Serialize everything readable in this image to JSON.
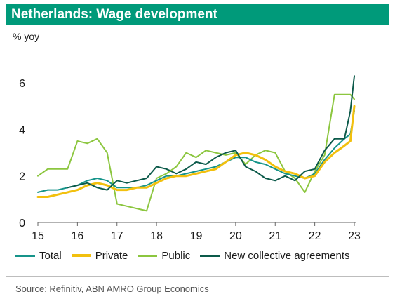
{
  "header": {
    "title": "Netherlands: Wage development"
  },
  "chart_data": {
    "type": "line",
    "title": "Netherlands: Wage development",
    "ylabel": "% yoy",
    "xlabel": "",
    "x_ticks": [
      "15",
      "16",
      "17",
      "18",
      "19",
      "20",
      "21",
      "22",
      "23"
    ],
    "y_ticks": [
      0,
      2,
      4,
      6
    ],
    "xlim": [
      2015,
      2023
    ],
    "ylim": [
      0,
      7
    ],
    "grid": false,
    "legend_position": "bottom",
    "series": [
      {
        "name": "Total",
        "color": "#16948a",
        "points": [
          [
            2015.0,
            1.3
          ],
          [
            2015.25,
            1.4
          ],
          [
            2015.5,
            1.4
          ],
          [
            2015.75,
            1.5
          ],
          [
            2016.0,
            1.6
          ],
          [
            2016.25,
            1.8
          ],
          [
            2016.5,
            1.9
          ],
          [
            2016.75,
            1.8
          ],
          [
            2017.0,
            1.5
          ],
          [
            2017.25,
            1.5
          ],
          [
            2017.5,
            1.5
          ],
          [
            2017.75,
            1.6
          ],
          [
            2018.0,
            1.8
          ],
          [
            2018.25,
            2.0
          ],
          [
            2018.5,
            2.0
          ],
          [
            2018.75,
            2.1
          ],
          [
            2019.0,
            2.2
          ],
          [
            2019.25,
            2.3
          ],
          [
            2019.5,
            2.4
          ],
          [
            2019.75,
            2.6
          ],
          [
            2020.0,
            2.8
          ],
          [
            2020.25,
            2.8
          ],
          [
            2020.5,
            2.6
          ],
          [
            2020.75,
            2.5
          ],
          [
            2021.0,
            2.3
          ],
          [
            2021.25,
            2.1
          ],
          [
            2021.5,
            2.0
          ],
          [
            2021.75,
            1.9
          ],
          [
            2022.0,
            2.1
          ],
          [
            2022.25,
            2.7
          ],
          [
            2022.5,
            3.2
          ],
          [
            2022.75,
            3.6
          ],
          [
            2022.9,
            3.8
          ],
          [
            2023.0,
            4.8
          ]
        ]
      },
      {
        "name": "Private",
        "color": "#f2c00e",
        "points": [
          [
            2015.0,
            1.1
          ],
          [
            2015.25,
            1.1
          ],
          [
            2015.5,
            1.2
          ],
          [
            2015.75,
            1.3
          ],
          [
            2016.0,
            1.4
          ],
          [
            2016.25,
            1.6
          ],
          [
            2016.5,
            1.7
          ],
          [
            2016.75,
            1.6
          ],
          [
            2017.0,
            1.4
          ],
          [
            2017.25,
            1.4
          ],
          [
            2017.5,
            1.5
          ],
          [
            2017.75,
            1.5
          ],
          [
            2018.0,
            1.7
          ],
          [
            2018.25,
            1.9
          ],
          [
            2018.5,
            2.0
          ],
          [
            2018.75,
            2.0
          ],
          [
            2019.0,
            2.1
          ],
          [
            2019.25,
            2.2
          ],
          [
            2019.5,
            2.3
          ],
          [
            2019.75,
            2.6
          ],
          [
            2020.0,
            2.9
          ],
          [
            2020.25,
            3.0
          ],
          [
            2020.5,
            2.9
          ],
          [
            2020.75,
            2.7
          ],
          [
            2021.0,
            2.4
          ],
          [
            2021.25,
            2.2
          ],
          [
            2021.5,
            2.1
          ],
          [
            2021.75,
            1.9
          ],
          [
            2022.0,
            2.0
          ],
          [
            2022.25,
            2.6
          ],
          [
            2022.5,
            3.0
          ],
          [
            2022.75,
            3.3
          ],
          [
            2022.9,
            3.5
          ],
          [
            2023.0,
            5.0
          ]
        ]
      },
      {
        "name": "Public",
        "color": "#8cc63f",
        "points": [
          [
            2015.0,
            2.0
          ],
          [
            2015.25,
            2.3
          ],
          [
            2015.5,
            2.3
          ],
          [
            2015.75,
            2.3
          ],
          [
            2016.0,
            3.5
          ],
          [
            2016.25,
            3.4
          ],
          [
            2016.5,
            3.6
          ],
          [
            2016.75,
            3.0
          ],
          [
            2017.0,
            0.8
          ],
          [
            2017.25,
            0.7
          ],
          [
            2017.5,
            0.6
          ],
          [
            2017.75,
            0.5
          ],
          [
            2018.0,
            1.9
          ],
          [
            2018.25,
            2.1
          ],
          [
            2018.5,
            2.4
          ],
          [
            2018.75,
            3.0
          ],
          [
            2019.0,
            2.8
          ],
          [
            2019.25,
            3.1
          ],
          [
            2019.5,
            3.0
          ],
          [
            2019.75,
            2.9
          ],
          [
            2020.0,
            3.0
          ],
          [
            2020.25,
            2.5
          ],
          [
            2020.5,
            2.9
          ],
          [
            2020.75,
            3.1
          ],
          [
            2021.0,
            3.0
          ],
          [
            2021.25,
            2.2
          ],
          [
            2021.5,
            1.9
          ],
          [
            2021.75,
            1.3
          ],
          [
            2022.0,
            2.2
          ],
          [
            2022.25,
            2.9
          ],
          [
            2022.5,
            5.5
          ],
          [
            2022.75,
            5.5
          ],
          [
            2022.9,
            5.5
          ],
          [
            2023.0,
            5.3
          ]
        ]
      },
      {
        "name": "New collective agreements",
        "color": "#0c5a4a",
        "points": [
          [
            2015.75,
            1.5
          ],
          [
            2016.0,
            1.6
          ],
          [
            2016.25,
            1.7
          ],
          [
            2016.5,
            1.5
          ],
          [
            2016.75,
            1.4
          ],
          [
            2017.0,
            1.8
          ],
          [
            2017.25,
            1.7
          ],
          [
            2017.5,
            1.8
          ],
          [
            2017.75,
            1.9
          ],
          [
            2018.0,
            2.4
          ],
          [
            2018.25,
            2.3
          ],
          [
            2018.5,
            2.1
          ],
          [
            2018.75,
            2.3
          ],
          [
            2019.0,
            2.6
          ],
          [
            2019.25,
            2.5
          ],
          [
            2019.5,
            2.8
          ],
          [
            2019.75,
            3.0
          ],
          [
            2020.0,
            3.1
          ],
          [
            2020.25,
            2.4
          ],
          [
            2020.5,
            2.2
          ],
          [
            2020.75,
            1.9
          ],
          [
            2021.0,
            1.8
          ],
          [
            2021.25,
            2.0
          ],
          [
            2021.5,
            1.8
          ],
          [
            2021.75,
            2.2
          ],
          [
            2022.0,
            2.3
          ],
          [
            2022.25,
            3.1
          ],
          [
            2022.5,
            3.6
          ],
          [
            2022.75,
            3.6
          ],
          [
            2022.9,
            4.8
          ],
          [
            2023.0,
            6.3
          ]
        ]
      }
    ]
  },
  "source": "Source: Refinitiv, ABN AMRO Group Economics"
}
